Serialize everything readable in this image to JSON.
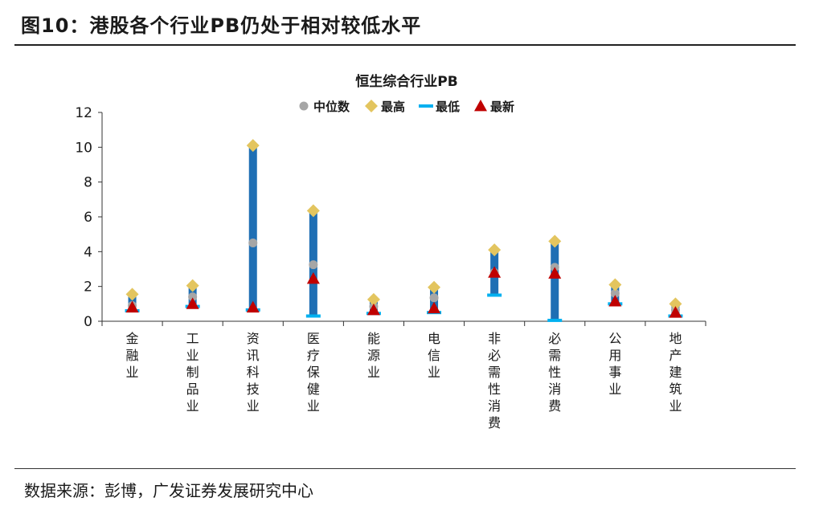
{
  "figure_title": "图10：港股各个行业PB仍处于相对较低水平",
  "source": "数据来源：彭博，广发证券发展研究中心",
  "chart_data": {
    "type": "scatter",
    "title": "恒生综合行业PB",
    "legend_position": "top",
    "grid": false,
    "ylim": [
      0,
      12
    ],
    "yticks": [
      0,
      2,
      4,
      6,
      8,
      10,
      12
    ],
    "categories": [
      "金融业",
      "工业制品业",
      "资讯科技业",
      "医疗保健业",
      "能源业",
      "电信业",
      "非必需性消费",
      "必需性消费",
      "公用事业",
      "地产建筑业"
    ],
    "series": [
      {
        "name": "中位数",
        "marker": "circle",
        "color": "#a6a6a6",
        "values": [
          0.9,
          1.4,
          4.5,
          3.25,
          0.85,
          1.35,
          2.8,
          3.1,
          1.6,
          0.65
        ]
      },
      {
        "name": "最高",
        "marker": "diamond",
        "color": "#e3c55f",
        "values": [
          1.55,
          2.05,
          10.1,
          6.35,
          1.25,
          1.95,
          4.1,
          4.6,
          2.1,
          1.0
        ]
      },
      {
        "name": "最低",
        "marker": "dash",
        "color": "#00b0f0",
        "values": [
          0.6,
          0.85,
          0.65,
          0.3,
          0.45,
          0.5,
          1.5,
          0.05,
          1.0,
          0.3
        ]
      },
      {
        "name": "最新",
        "marker": "triangle",
        "color": "#c00000",
        "values": [
          0.8,
          1.0,
          0.8,
          2.45,
          0.65,
          0.75,
          2.8,
          2.75,
          1.15,
          0.5
        ]
      }
    ],
    "range_bar_color": "#1f6fb4"
  }
}
